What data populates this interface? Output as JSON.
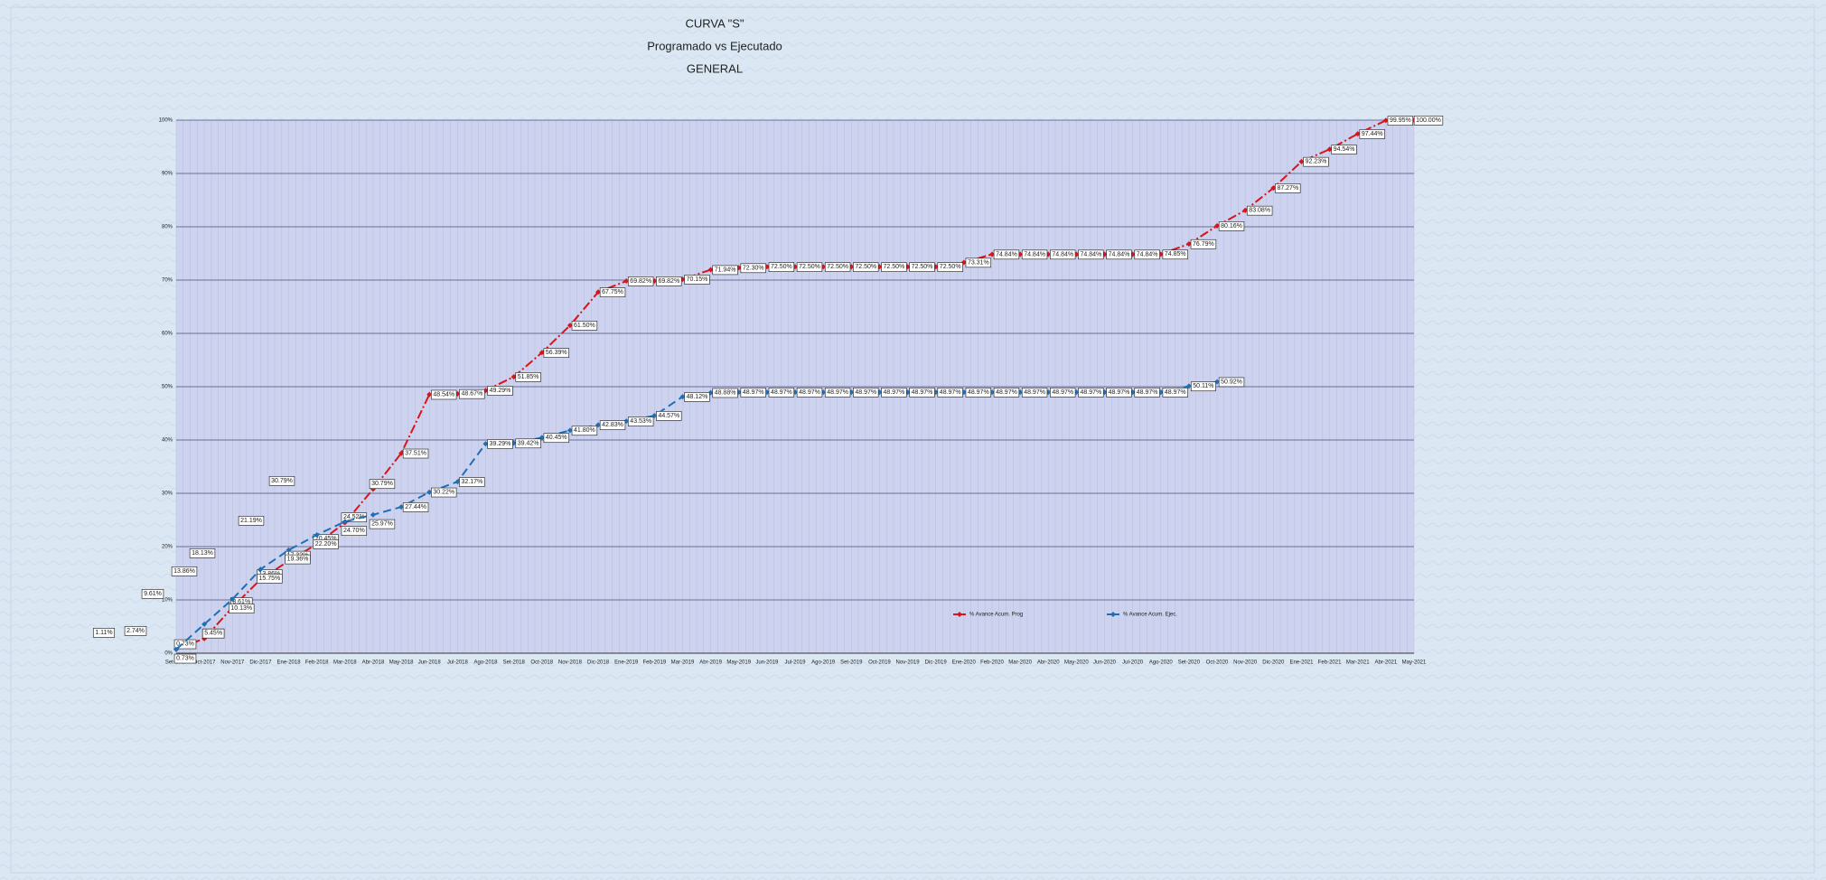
{
  "chart_data": {
    "type": "line",
    "title": [
      "CURVA \"S\"",
      "Programado vs Ejecutado",
      "GENERAL"
    ],
    "categories": [
      "Set-2017",
      "Oct-2017",
      "Nov-2017",
      "Dic-2017",
      "Ene-2018",
      "Feb-2018",
      "Mar-2018",
      "Abr-2018",
      "May-2018",
      "Jun-2018",
      "Jul-2018",
      "Ago-2018",
      "Set-2018",
      "Oct-2018",
      "Nov-2018",
      "Dic-2018",
      "Ene-2019",
      "Feb-2019",
      "Mar-2019",
      "Abr-2019",
      "May-2019",
      "Jun-2019",
      "Jul-2019",
      "Ago-2019",
      "Set-2019",
      "Oct-2019",
      "Nov-2019",
      "Dic-2019",
      "Ene-2020",
      "Feb-2020",
      "Mar-2020",
      "Abr-2020",
      "May-2020",
      "Jun-2020",
      "Jul-2020",
      "Ago-2020",
      "Set-2020",
      "Oct-2020",
      "Nov-2020",
      "Dic-2020",
      "Ene-2021",
      "Feb-2021",
      "Mar-2021",
      "Abr-2021",
      "May-2021"
    ],
    "series": [
      {
        "name": "% Avance Acum. Prog",
        "color": "#d9141b",
        "dash": "10 3 2 3",
        "values": [
          0.73,
          2.74,
          8.61,
          13.86,
          17.32,
          20.45,
          24.52,
          30.79,
          37.51,
          48.54,
          48.67,
          49.29,
          51.85,
          56.39,
          61.5,
          67.75,
          69.82,
          69.82,
          70.15,
          71.94,
          72.3,
          72.5,
          72.5,
          72.5,
          72.5,
          72.5,
          72.5,
          72.5,
          73.31,
          74.84,
          74.84,
          74.84,
          74.84,
          74.84,
          74.84,
          74.85,
          76.79,
          80.16,
          83.08,
          87.27,
          92.23,
          94.54,
          97.44,
          99.95,
          100.0
        ],
        "value_labels": [
          "0.73%",
          "2.74%",
          "8.61%",
          "13.86%",
          "17.32%",
          "20.45%",
          "24.52%",
          "30.79%",
          "37.51%",
          "48.54%",
          "48.67%",
          "49.29%",
          "51.85%",
          "56.39%",
          "61.50%",
          "67.75%",
          "69.82%",
          "69.82%",
          "70.15%",
          "71.94%",
          "72.30%",
          "72.50%",
          "72.50%",
          "72.50%",
          "72.50%",
          "72.50%",
          "72.50%",
          "72.50%",
          "73.31%",
          "74.84%",
          "74.84%",
          "74.84%",
          "74.84%",
          "74.84%",
          "74.84%",
          "74.85%",
          "76.79%",
          "80.16%",
          "83.08%",
          "87.27%",
          "92.23%",
          "94.54%",
          "97.44%",
          "99.95%",
          "100.00%"
        ]
      },
      {
        "name": "% Avance Acum. Ejec.",
        "color": "#1f6fb4",
        "dash": "9 5",
        "values": [
          0.73,
          5.45,
          10.13,
          15.75,
          19.36,
          22.2,
          24.7,
          25.97,
          27.44,
          30.22,
          32.17,
          39.29,
          39.42,
          40.45,
          41.8,
          42.83,
          43.53,
          44.57,
          48.12,
          48.88,
          48.97,
          48.97,
          48.97,
          48.97,
          48.97,
          48.97,
          48.97,
          48.97,
          48.97,
          48.97,
          48.97,
          48.97,
          48.97,
          48.97,
          48.97,
          48.97,
          50.11,
          50.92,
          null,
          null,
          null,
          null,
          null,
          null,
          null
        ],
        "value_labels": [
          "0.73%",
          "5.45%",
          "10.13%",
          "15.75%",
          "19.36%",
          "22.20%",
          "24.70%",
          "25.97%",
          "27.44%",
          "30.22%",
          "32.17%",
          "39.29%",
          "39.42%",
          "40.45%",
          "41.80%",
          "42.83%",
          "43.53%",
          "44.57%",
          "48.12%",
          "48.88%",
          "48.97%",
          "48.97%",
          "48.97%",
          "48.97%",
          "48.97%",
          "48.97%",
          "48.97%",
          "48.97%",
          "48.97%",
          "48.97%",
          "48.97%",
          "48.97%",
          "48.97%",
          "48.97%",
          "48.97%",
          "48.97%",
          "50.11%",
          "50.92%",
          null,
          null,
          null,
          null,
          null,
          null,
          null
        ]
      }
    ],
    "annotations": [
      "1.11%",
      "2.74%",
      "9.61%",
      "13.86%",
      "18.13%",
      "21.19%",
      "30.79%"
    ],
    "ylim": [
      0,
      100
    ],
    "yticks": [
      {
        "value": 0,
        "label": "0%"
      },
      {
        "value": 10,
        "label": "10%"
      },
      {
        "value": 20,
        "label": "20%"
      },
      {
        "value": 30,
        "label": "30%"
      },
      {
        "value": 40,
        "label": "40%"
      },
      {
        "value": 50,
        "label": "50%"
      },
      {
        "value": 60,
        "label": "60%"
      },
      {
        "value": 70,
        "label": "70%"
      },
      {
        "value": 80,
        "label": "80%"
      },
      {
        "value": 90,
        "label": "90%"
      },
      {
        "value": 100,
        "label": "100%"
      }
    ],
    "grid": true
  }
}
